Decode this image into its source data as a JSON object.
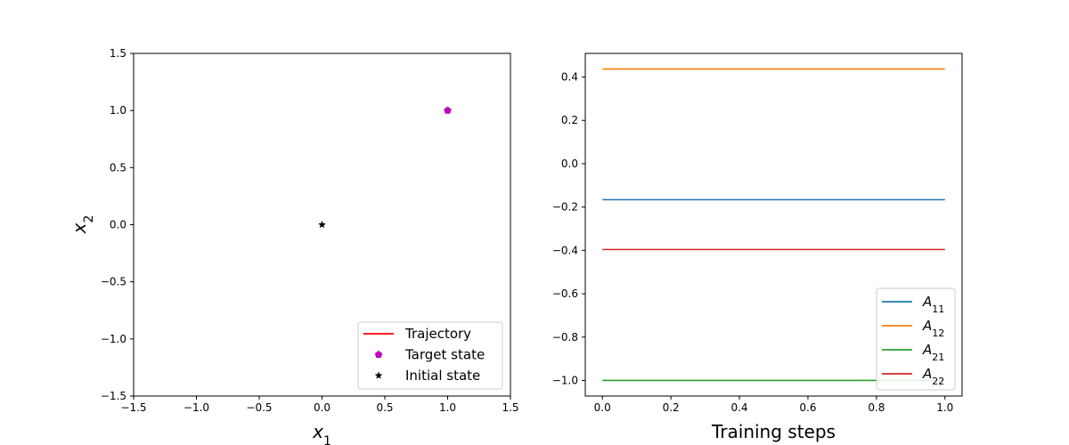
{
  "chart_data": [
    {
      "type": "scatter",
      "title": "",
      "xlabel": "x",
      "xlabel_sub": "1",
      "ylabel": "x",
      "ylabel_sub": "2",
      "xlim": [
        -1.5,
        1.5
      ],
      "ylim": [
        -1.5,
        1.5
      ],
      "xticks": [
        -1.5,
        -1.0,
        -0.5,
        0.0,
        0.5,
        1.0,
        1.5
      ],
      "yticks": [
        -1.5,
        -1.0,
        -0.5,
        0.0,
        0.5,
        1.0,
        1.5
      ],
      "grid": false,
      "legend_position": "lower-right",
      "series": [
        {
          "name": "Trajectory",
          "kind": "line",
          "color": "#ff0000",
          "points": []
        },
        {
          "name": "Target state",
          "kind": "marker",
          "marker": "pentagon",
          "color": "#bf00bf",
          "points": [
            [
              1.0,
              1.0
            ]
          ]
        },
        {
          "name": "Initial state",
          "kind": "marker",
          "marker": "star",
          "color": "#000000",
          "points": [
            [
              0.0,
              0.0
            ]
          ]
        }
      ]
    },
    {
      "type": "line",
      "title": "",
      "xlabel": "Training steps",
      "ylabel": "",
      "xlim": [
        -0.05,
        1.05
      ],
      "ylim": [
        -1.072,
        0.509
      ],
      "xticks": [
        0.0,
        0.2,
        0.4,
        0.6,
        0.8,
        1.0
      ],
      "yticks": [
        -1.0,
        -0.8,
        -0.6,
        -0.4,
        -0.2,
        0.0,
        0.2,
        0.4
      ],
      "grid": false,
      "legend_position": "lower-right",
      "series": [
        {
          "name": "A",
          "sub": "11",
          "color": "#1f77b4",
          "x": [
            0.0,
            1.0
          ],
          "y": [
            -0.166,
            -0.166
          ]
        },
        {
          "name": "A",
          "sub": "12",
          "color": "#ff7f0e",
          "x": [
            0.0,
            1.0
          ],
          "y": [
            0.437,
            0.437
          ]
        },
        {
          "name": "A",
          "sub": "21",
          "color": "#2ca02c",
          "x": [
            0.0,
            1.0
          ],
          "y": [
            -1.0,
            -1.0
          ]
        },
        {
          "name": "A",
          "sub": "22",
          "color": "#d62728",
          "x": [
            0.0,
            1.0
          ],
          "y": [
            -0.396,
            -0.396
          ]
        }
      ]
    }
  ]
}
